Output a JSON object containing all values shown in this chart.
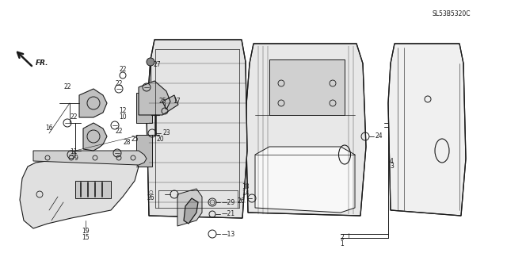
{
  "bg_color": "#ffffff",
  "fig_width": 6.4,
  "fig_height": 3.19,
  "dpi": 100,
  "diagram_code": "SL53B5320C",
  "line_color": "#1a1a1a",
  "text_color": "#1a1a1a",
  "font_size_labels": 5.5,
  "font_size_code": 5.5,
  "parts": {
    "outer_door": {
      "x": [
        0.755,
        0.75,
        0.758,
        0.76,
        0.88,
        0.888,
        0.892,
        0.882,
        0.755
      ],
      "y": [
        0.92,
        0.18,
        0.12,
        0.1,
        0.1,
        0.15,
        0.68,
        0.94,
        0.92
      ]
    }
  }
}
